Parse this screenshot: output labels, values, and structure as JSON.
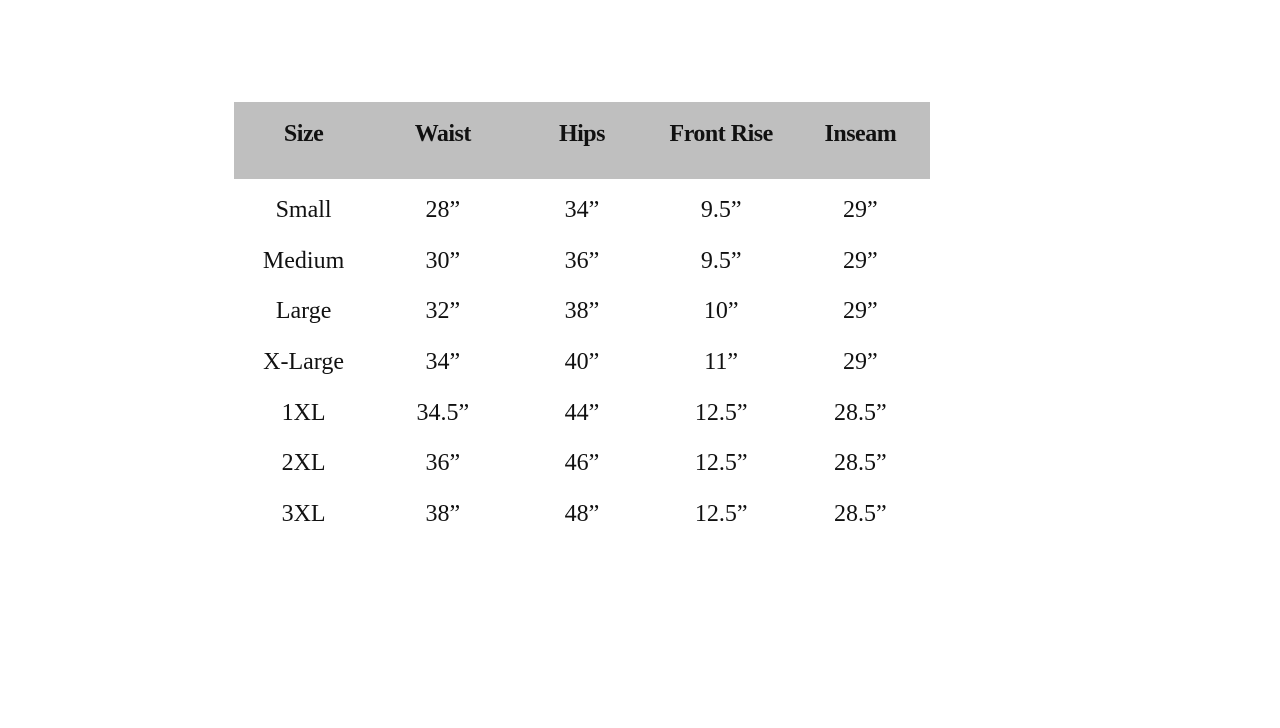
{
  "colors": {
    "header_background": "#bfbfbf",
    "text": "#111111"
  },
  "table": {
    "headers": [
      "Size",
      "Waist",
      "Hips",
      "Front Rise",
      "Inseam"
    ],
    "rows": [
      [
        "Small",
        "28”",
        "34”",
        "9.5”",
        "29”"
      ],
      [
        "Medium",
        "30”",
        "36”",
        "9.5”",
        "29”"
      ],
      [
        "Large",
        "32”",
        "38”",
        "10”",
        "29”"
      ],
      [
        "X-Large",
        "34”",
        "40”",
        "11”",
        "29”"
      ],
      [
        "1XL",
        "34.5”",
        "44”",
        "12.5”",
        "28.5”"
      ],
      [
        "2XL",
        "36”",
        "46”",
        "12.5”",
        "28.5”"
      ],
      [
        "3XL",
        "38”",
        "48”",
        "12.5”",
        "28.5”"
      ]
    ]
  }
}
